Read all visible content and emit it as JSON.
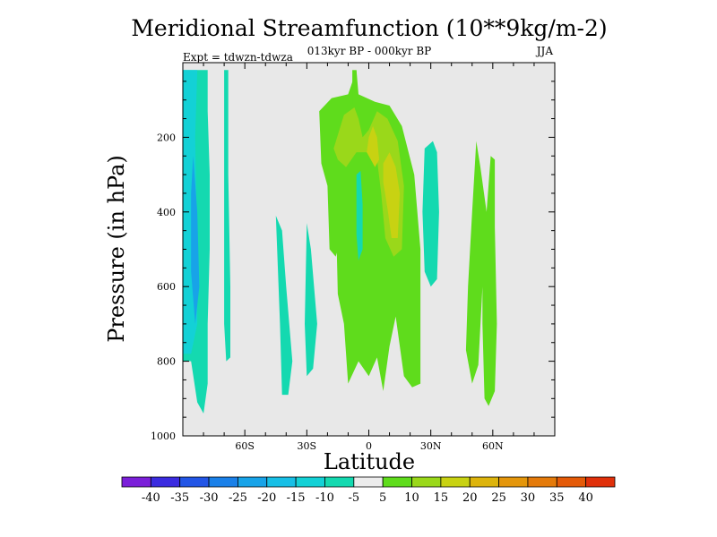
{
  "chart_data": {
    "type": "contour",
    "title": "Meridional Streamfunction (10**9kg/m-2)",
    "subtitle": "013kyr BP - 000kyr BP",
    "experiment": "Expt = tdwzn-tdwza",
    "season": "JJA",
    "xlabel": "Latitude",
    "ylabel": "Pressure (in hPa)",
    "xlim": [
      -90,
      90
    ],
    "ylim": [
      1000,
      0
    ],
    "x_ticks": [
      {
        "value": -60,
        "label": "60S"
      },
      {
        "value": -30,
        "label": "30S"
      },
      {
        "value": 0,
        "label": "0"
      },
      {
        "value": 30,
        "label": "30N"
      },
      {
        "value": 60,
        "label": "60N"
      }
    ],
    "y_ticks": [
      {
        "value": 200,
        "label": "200"
      },
      {
        "value": 400,
        "label": "400"
      },
      {
        "value": 600,
        "label": "600"
      },
      {
        "value": 800,
        "label": "800"
      },
      {
        "value": 1000,
        "label": "1000"
      }
    ],
    "background_color": "#e8e8e8",
    "levels": [
      -40,
      -35,
      -30,
      -25,
      -20,
      -15,
      -10,
      -5,
      5,
      10,
      15,
      20,
      25,
      30,
      35,
      40
    ],
    "colorbar_colors": [
      "#7b1fd9",
      "#3b2be0",
      "#2255e6",
      "#1a80e8",
      "#18a3e8",
      "#17bfe6",
      "#13d1d6",
      "#14d9b0",
      "#ececec",
      "#5fdc1c",
      "#9ad81a",
      "#c8d212",
      "#ddb40c",
      "#e4960b",
      "#e47a0a",
      "#e45a08",
      "#e0300a"
    ],
    "regions": [
      {
        "name": "sh-polar-cell",
        "color": "#14d9b0",
        "points": [
          [
            -90,
            20
          ],
          [
            -78,
            20
          ],
          [
            -78,
            130
          ],
          [
            -77,
            300
          ],
          [
            -77,
            500
          ],
          [
            -78,
            700
          ],
          [
            -78,
            860
          ],
          [
            -80,
            940
          ],
          [
            -83,
            910
          ],
          [
            -86,
            800
          ],
          [
            -90,
            800
          ]
        ]
      },
      {
        "name": "sh-polar-inner",
        "color": "#13d1d6",
        "points": [
          [
            -90,
            20
          ],
          [
            -83,
            20
          ],
          [
            -84,
            200
          ],
          [
            -83,
            500
          ],
          [
            -83,
            700
          ],
          [
            -86,
            780
          ],
          [
            -90,
            780
          ]
        ]
      },
      {
        "name": "sh-polar-core",
        "color": "#18a3e8",
        "points": [
          [
            -85,
            250
          ],
          [
            -83,
            400
          ],
          [
            -82,
            600
          ],
          [
            -84,
            700
          ],
          [
            -86,
            560
          ],
          [
            -86,
            350
          ]
        ]
      },
      {
        "name": "sh-60-strip",
        "color": "#14d9b0",
        "points": [
          [
            -70,
            20
          ],
          [
            -68,
            20
          ],
          [
            -68,
            300
          ],
          [
            -67,
            600
          ],
          [
            -67,
            790
          ],
          [
            -69,
            800
          ],
          [
            -70,
            700
          ],
          [
            -70,
            400
          ]
        ]
      },
      {
        "name": "sh-midlat-a",
        "color": "#14d9b0",
        "points": [
          [
            -45,
            410
          ],
          [
            -42,
            450
          ],
          [
            -40,
            600
          ],
          [
            -37,
            800
          ],
          [
            -39,
            890
          ],
          [
            -42,
            890
          ],
          [
            -43,
            700
          ]
        ]
      },
      {
        "name": "sh-midlat-b",
        "color": "#14d9b0",
        "points": [
          [
            -30,
            430
          ],
          [
            -28,
            500
          ],
          [
            -25,
            700
          ],
          [
            -27,
            820
          ],
          [
            -30,
            840
          ],
          [
            -31,
            700
          ]
        ]
      },
      {
        "name": "subtropics-green",
        "color": "#5fdc1c",
        "points": [
          [
            -23,
            270
          ],
          [
            -24,
            130
          ],
          [
            -18,
            95
          ],
          [
            -10,
            85
          ],
          [
            -6,
            20
          ],
          [
            -5,
            85
          ],
          [
            3,
            105
          ],
          [
            10,
            115
          ],
          [
            16,
            170
          ],
          [
            22,
            300
          ],
          [
            25,
            500
          ],
          [
            25,
            860
          ],
          [
            21,
            870
          ],
          [
            17,
            840
          ],
          [
            13,
            680
          ],
          [
            10,
            760
          ],
          [
            7,
            880
          ],
          [
            4,
            790
          ],
          [
            0,
            840
          ],
          [
            -5,
            800
          ],
          [
            -10,
            860
          ],
          [
            -12,
            700
          ],
          [
            -15,
            620
          ],
          [
            -16,
            380
          ],
          [
            -18,
            310
          ],
          [
            -11,
            360
          ],
          [
            -14,
            410
          ],
          [
            -12,
            440
          ],
          [
            -16,
            520
          ],
          [
            -19,
            500
          ],
          [
            -20,
            330
          ]
        ]
      },
      {
        "name": "upper-yellowgreen",
        "color": "#9ad81a",
        "points": [
          [
            -15,
            260
          ],
          [
            -17,
            230
          ],
          [
            -12,
            140
          ],
          [
            -7,
            120
          ],
          [
            -5,
            150
          ],
          [
            -3,
            200
          ],
          [
            0,
            180
          ],
          [
            4,
            130
          ],
          [
            9,
            150
          ],
          [
            14,
            210
          ],
          [
            17,
            330
          ],
          [
            16,
            500
          ],
          [
            12,
            520
          ],
          [
            8,
            470
          ],
          [
            6,
            350
          ],
          [
            4,
            260
          ],
          [
            0,
            240
          ],
          [
            -6,
            240
          ],
          [
            -11,
            280
          ]
        ]
      },
      {
        "name": "upper-yellow",
        "color": "#c8d212",
        "points": [
          [
            -1,
            240
          ],
          [
            0,
            200
          ],
          [
            2,
            170
          ],
          [
            4,
            200
          ],
          [
            5,
            260
          ],
          [
            3,
            280
          ]
        ]
      },
      {
        "name": "core-yellow",
        "color": "#c8d212",
        "points": [
          [
            7,
            270
          ],
          [
            10,
            240
          ],
          [
            13,
            280
          ],
          [
            15,
            350
          ],
          [
            14,
            470
          ],
          [
            11,
            470
          ],
          [
            9,
            390
          ],
          [
            7,
            320
          ]
        ]
      },
      {
        "name": "eq-cyan",
        "color": "#14d9b0",
        "points": [
          [
            -6,
            300
          ],
          [
            -4,
            290
          ],
          [
            -3,
            380
          ],
          [
            -3,
            500
          ],
          [
            -5,
            530
          ],
          [
            -6,
            460
          ]
        ]
      },
      {
        "name": "nh-midlat-cyan",
        "color": "#14d9b0",
        "points": [
          [
            27,
            230
          ],
          [
            31,
            210
          ],
          [
            33,
            240
          ],
          [
            34,
            400
          ],
          [
            33,
            580
          ],
          [
            30,
            600
          ],
          [
            27,
            560
          ],
          [
            26,
            400
          ]
        ]
      },
      {
        "name": "nh-60-green",
        "color": "#5fdc1c",
        "points": [
          [
            52,
            210
          ],
          [
            54,
            280
          ],
          [
            57,
            400
          ],
          [
            59,
            250
          ],
          [
            61,
            260
          ],
          [
            61,
            440
          ],
          [
            62,
            700
          ],
          [
            61,
            880
          ],
          [
            58,
            920
          ],
          [
            56,
            900
          ],
          [
            55,
            700
          ],
          [
            55,
            600
          ],
          [
            53,
            810
          ],
          [
            50,
            860
          ],
          [
            47,
            770
          ],
          [
            48,
            600
          ],
          [
            50,
            400
          ]
        ]
      },
      {
        "name": "eq-top-green",
        "color": "#5fdc1c",
        "points": [
          [
            -8,
            20
          ],
          [
            -6,
            20
          ],
          [
            -6,
            110
          ],
          [
            -8,
            110
          ]
        ]
      }
    ]
  }
}
